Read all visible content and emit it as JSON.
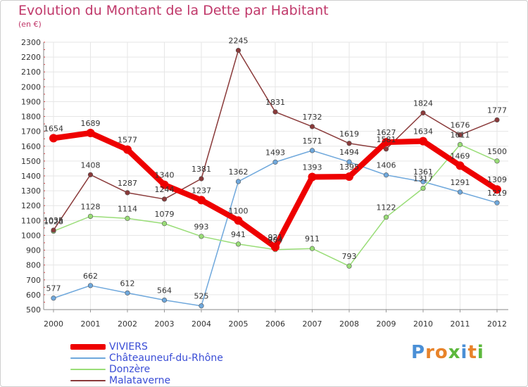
{
  "title": "Evolution du Montant de la Dette par Habitant",
  "subtitle": "(en €)",
  "brand": {
    "letters": [
      "P",
      "r",
      "o",
      "x",
      "i",
      "t",
      "i"
    ],
    "colors": [
      "#4a8fd6",
      "#e8832a",
      "#e8832a",
      "#5cb83c",
      "#4a8fd6",
      "#e8832a",
      "#5cb83c"
    ]
  },
  "chart_data": {
    "type": "line",
    "x": [
      "2000",
      "2001",
      "2002",
      "2003",
      "2004",
      "2005",
      "2006",
      "2007",
      "2008",
      "2009",
      "2010",
      "2011",
      "2012"
    ],
    "ylim": [
      500,
      2300
    ],
    "yticks": [
      500,
      600,
      700,
      800,
      900,
      1000,
      1100,
      1200,
      1300,
      1400,
      1500,
      1600,
      1700,
      1800,
      1900,
      2000,
      2100,
      2200,
      2300
    ],
    "grid": true,
    "legend_position": "bottom-left",
    "series": [
      {
        "name": "VIVIERS",
        "color": "#ee0000",
        "width": 8,
        "values": [
          1654,
          1689,
          1577,
          1340,
          1237,
          1100,
          921,
          1393,
          1395,
          1627,
          1634,
          1469,
          1309
        ]
      },
      {
        "name": "Châteauneuf-du-Rhône",
        "color": "#6fa8dc",
        "width": 1.5,
        "values": [
          577,
          662,
          612,
          564,
          525,
          1362,
          1493,
          1571,
          1494,
          1406,
          1361,
          1291,
          1219
        ]
      },
      {
        "name": "Donzère",
        "color": "#99dd77",
        "width": 1.5,
        "values": [
          1028,
          1128,
          1114,
          1079,
          993,
          941,
          904,
          911,
          793,
          1122,
          1317,
          1611,
          1500
        ]
      },
      {
        "name": "Malataverne",
        "color": "#8a3a3a",
        "width": 1.5,
        "values": [
          1035,
          1408,
          1287,
          1244,
          1381,
          2245,
          1831,
          1732,
          1619,
          1581,
          1824,
          1676,
          1777
        ]
      }
    ]
  }
}
